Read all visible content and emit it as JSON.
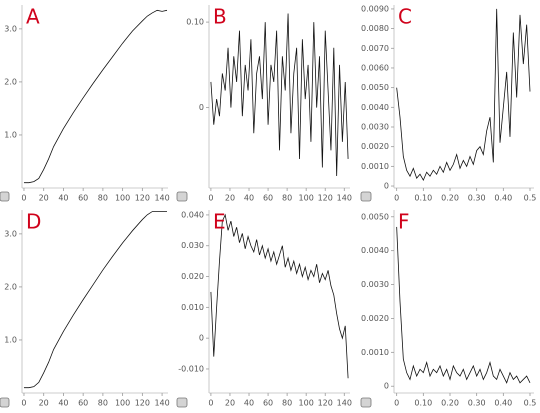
{
  "chart_data": [
    {
      "type": "line",
      "label": "A",
      "color": "#111111",
      "x": [
        0,
        5,
        10,
        15,
        20,
        25,
        30,
        40,
        50,
        60,
        70,
        80,
        90,
        100,
        110,
        120,
        125,
        130,
        135,
        140,
        145
      ],
      "values": [
        0.1,
        0.1,
        0.12,
        0.18,
        0.35,
        0.55,
        0.78,
        1.12,
        1.42,
        1.7,
        1.97,
        2.23,
        2.48,
        2.73,
        2.96,
        3.15,
        3.24,
        3.3,
        3.35,
        3.33,
        3.35
      ],
      "xlim": [
        -2,
        146
      ],
      "ylim": [
        0,
        3.45
      ],
      "xticks": [
        0,
        20,
        40,
        60,
        80,
        100,
        120,
        140
      ],
      "yticks": [
        {
          "value": 1,
          "label": "1.0"
        },
        {
          "value": 2,
          "label": "2.0"
        },
        {
          "value": 3,
          "label": "3.0"
        }
      ]
    },
    {
      "type": "line",
      "label": "B",
      "color": "#111111",
      "x": [
        0,
        3,
        6,
        9,
        12,
        15,
        18,
        21,
        24,
        27,
        30,
        33,
        36,
        39,
        42,
        45,
        48,
        51,
        54,
        57,
        60,
        63,
        66,
        69,
        72,
        75,
        78,
        81,
        84,
        87,
        90,
        93,
        96,
        99,
        102,
        105,
        108,
        111,
        114,
        117,
        120,
        123,
        126,
        129,
        132,
        135,
        138,
        141,
        144
      ],
      "values": [
        0.03,
        -0.02,
        0.01,
        -0.01,
        0.04,
        0.02,
        0.07,
        0.0,
        0.06,
        0.03,
        0.09,
        -0.01,
        0.05,
        0.02,
        0.08,
        -0.03,
        0.04,
        0.06,
        0.01,
        0.1,
        -0.02,
        0.05,
        0.03,
        0.09,
        -0.05,
        0.06,
        0.02,
        0.11,
        -0.03,
        0.04,
        0.07,
        -0.06,
        0.08,
        0.01,
        0.05,
        -0.04,
        0.1,
        0.0,
        0.06,
        -0.07,
        0.09,
        0.02,
        -0.05,
        0.07,
        -0.08,
        0.05,
        -0.04,
        0.03,
        -0.06
      ],
      "xlim": [
        -2,
        146
      ],
      "ylim": [
        -0.094,
        0.12
      ],
      "xticks": [
        0,
        20,
        40,
        60,
        80,
        100,
        120,
        140
      ],
      "yticks": [
        0,
        {
          "value": 0.1,
          "label": "0.10"
        }
      ]
    },
    {
      "type": "line",
      "label": "C",
      "color": "#111111",
      "x": [
        0,
        0.0125,
        0.025,
        0.0375,
        0.05,
        0.0625,
        0.075,
        0.0875,
        0.1,
        0.1125,
        0.125,
        0.1375,
        0.15,
        0.1625,
        0.175,
        0.1875,
        0.2,
        0.2125,
        0.225,
        0.2375,
        0.25,
        0.2625,
        0.275,
        0.2875,
        0.3,
        0.3125,
        0.325,
        0.3375,
        0.35,
        0.3625,
        0.375,
        0.3875,
        0.4,
        0.4125,
        0.425,
        0.4375,
        0.45,
        0.4625,
        0.475,
        0.4875,
        0.5
      ],
      "values": [
        0.005,
        0.0035,
        0.0015,
        0.0008,
        0.0005,
        0.0009,
        0.0004,
        0.0006,
        0.0003,
        0.0007,
        0.0005,
        0.0008,
        0.0006,
        0.001,
        0.0007,
        0.0012,
        0.0008,
        0.0011,
        0.0016,
        0.0009,
        0.0013,
        0.001,
        0.0015,
        0.0011,
        0.0018,
        0.002,
        0.0016,
        0.0028,
        0.0035,
        0.0012,
        0.009,
        0.0022,
        0.004,
        0.0058,
        0.0025,
        0.0078,
        0.0045,
        0.0087,
        0.0062,
        0.0082,
        0.0048
      ],
      "xlim": [
        -0.01,
        0.515
      ],
      "ylim": [
        -0.0001,
        0.0092
      ],
      "xticks": [
        0,
        {
          "value": 0.1,
          "label": "0.10"
        },
        {
          "value": 0.2,
          "label": "0.20"
        },
        {
          "value": 0.3,
          "label": "0.30"
        },
        {
          "value": 0.4,
          "label": "0.40"
        },
        0.5
      ],
      "yticks": [
        0,
        {
          "value": 0.001,
          "label": "0.0010"
        },
        {
          "value": 0.002,
          "label": "0.0020"
        },
        {
          "value": 0.003,
          "label": "0.0030"
        },
        {
          "value": 0.004,
          "label": "0.0040"
        },
        {
          "value": 0.005,
          "label": "0.0050"
        },
        {
          "value": 0.006,
          "label": "0.0060"
        },
        {
          "value": 0.007,
          "label": "0.0070"
        },
        {
          "value": 0.008,
          "label": "0.0080"
        },
        {
          "value": 0.009,
          "label": "0.0090"
        }
      ]
    },
    {
      "type": "line",
      "label": "D",
      "color": "#111111",
      "x": [
        0,
        5,
        10,
        15,
        20,
        25,
        30,
        40,
        50,
        60,
        70,
        80,
        90,
        100,
        110,
        120,
        125,
        130,
        135,
        140,
        145
      ],
      "values": [
        0.1,
        0.1,
        0.12,
        0.2,
        0.38,
        0.58,
        0.82,
        1.16,
        1.47,
        1.76,
        2.04,
        2.32,
        2.58,
        2.83,
        3.06,
        3.27,
        3.36,
        3.42,
        3.42,
        3.42,
        3.42
      ],
      "xlim": [
        -2,
        146
      ],
      "ylim": [
        0,
        3.45
      ],
      "xticks": [
        0,
        20,
        40,
        60,
        80,
        100,
        120,
        140
      ],
      "yticks": [
        {
          "value": 1,
          "label": "1.0"
        },
        {
          "value": 2,
          "label": "2.0"
        },
        {
          "value": 3,
          "label": "3.0"
        }
      ]
    },
    {
      "type": "line",
      "label": "E",
      "color": "#111111",
      "x": [
        0,
        3,
        6,
        9,
        12,
        15,
        18,
        21,
        24,
        27,
        30,
        33,
        36,
        39,
        42,
        45,
        48,
        51,
        54,
        57,
        60,
        63,
        66,
        69,
        72,
        75,
        78,
        81,
        84,
        87,
        90,
        93,
        96,
        99,
        102,
        105,
        108,
        111,
        114,
        117,
        120,
        123,
        126,
        129,
        132,
        135,
        138,
        141,
        144
      ],
      "values": [
        0.015,
        -0.006,
        0.01,
        0.025,
        0.038,
        0.04,
        0.035,
        0.038,
        0.033,
        0.036,
        0.031,
        0.034,
        0.029,
        0.033,
        0.03,
        0.028,
        0.032,
        0.027,
        0.03,
        0.026,
        0.029,
        0.025,
        0.028,
        0.024,
        0.027,
        0.03,
        0.023,
        0.026,
        0.022,
        0.025,
        0.021,
        0.024,
        0.02,
        0.023,
        0.019,
        0.022,
        0.02,
        0.024,
        0.018,
        0.021,
        0.019,
        0.022,
        0.017,
        0.014,
        0.008,
        0.003,
        0.0,
        0.004,
        -0.013
      ],
      "xlim": [
        -2,
        146
      ],
      "ylim": [
        -0.0178,
        0.0416
      ],
      "xticks": [
        0,
        20,
        40,
        60,
        80,
        100,
        120,
        140
      ],
      "yticks": [
        {
          "value": -0.01,
          "label": "-0.010"
        },
        0,
        {
          "value": 0.01,
          "label": "0.010"
        },
        {
          "value": 0.02,
          "label": "0.020"
        },
        {
          "value": 0.03,
          "label": "0.030"
        },
        {
          "value": 0.04,
          "label": "0.040"
        }
      ]
    },
    {
      "type": "line",
      "label": "F",
      "color": "#111111",
      "x": [
        0,
        0.0125,
        0.025,
        0.0375,
        0.05,
        0.0625,
        0.075,
        0.0875,
        0.1,
        0.1125,
        0.125,
        0.1375,
        0.15,
        0.1625,
        0.175,
        0.1875,
        0.2,
        0.2125,
        0.225,
        0.2375,
        0.25,
        0.2625,
        0.275,
        0.2875,
        0.3,
        0.3125,
        0.325,
        0.3375,
        0.35,
        0.3625,
        0.375,
        0.3875,
        0.4,
        0.4125,
        0.425,
        0.4375,
        0.45,
        0.4625,
        0.475,
        0.4875,
        0.5
      ],
      "values": [
        0.0047,
        0.0025,
        0.0008,
        0.0004,
        0.0002,
        0.0006,
        0.0003,
        0.0005,
        0.0004,
        0.0007,
        0.0003,
        0.0005,
        0.0004,
        0.0006,
        0.0003,
        0.0005,
        0.0002,
        0.0006,
        0.0004,
        0.0003,
        0.0005,
        0.0002,
        0.0004,
        0.0006,
        0.0003,
        0.0005,
        0.0002,
        0.0004,
        0.0007,
        0.0003,
        0.0002,
        0.0005,
        0.0003,
        0.0001,
        0.0004,
        0.0002,
        0.0003,
        0.0001,
        0.0002,
        0.0003,
        0.0001
      ],
      "xlim": [
        -0.01,
        0.515
      ],
      "ylim": [
        -0.0002,
        0.0052
      ],
      "xticks": [
        0,
        {
          "value": 0.1,
          "label": "0.10"
        },
        {
          "value": 0.2,
          "label": "0.20"
        },
        {
          "value": 0.3,
          "label": "0.30"
        },
        {
          "value": 0.4,
          "label": "0.40"
        },
        0.5
      ],
      "yticks": [
        0,
        {
          "value": 0.001,
          "label": "0.0010"
        },
        {
          "value": 0.002,
          "label": "0.0020"
        },
        {
          "value": 0.003,
          "label": "0.0030"
        },
        {
          "value": 0.004,
          "label": "0.0040"
        },
        {
          "value": 0.005,
          "label": "0.0050"
        }
      ]
    }
  ]
}
